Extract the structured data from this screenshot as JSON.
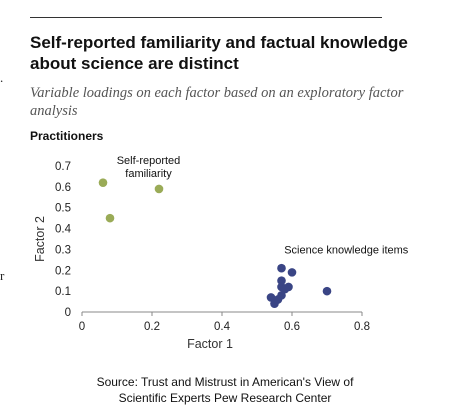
{
  "header": {
    "title": "Self-reported familiarity and factual knowledge about science are distinct",
    "subtitle": "Variable loadings on each factor based on an exploratory factor analysis",
    "panel_label": "Practitioners"
  },
  "left_edge_fragments": [
    ".",
    "r"
  ],
  "chart_data": {
    "type": "scatter",
    "title": "",
    "xlabel": "Factor 1",
    "ylabel": "Factor 2",
    "xlim": [
      0,
      0.8
    ],
    "ylim": [
      0,
      0.7
    ],
    "xticks": [
      "0",
      "0.2",
      "0.4",
      "0.6",
      "0.8"
    ],
    "yticks": [
      "0",
      "0.1",
      "0.2",
      "0.3",
      "0.4",
      "0.5",
      "0.6",
      "0.7"
    ],
    "grid": false,
    "series": [
      {
        "name": "Self-reported familiarity",
        "color": "#9aab57",
        "points": [
          [
            0.06,
            0.62
          ],
          [
            0.22,
            0.59
          ],
          [
            0.08,
            0.45
          ]
        ]
      },
      {
        "name": "Science knowledge items",
        "color": "#3a4585",
        "points": [
          [
            0.57,
            0.21
          ],
          [
            0.6,
            0.19
          ],
          [
            0.57,
            0.15
          ],
          [
            0.57,
            0.12
          ],
          [
            0.59,
            0.12
          ],
          [
            0.58,
            0.11
          ],
          [
            0.7,
            0.1
          ],
          [
            0.57,
            0.08
          ],
          [
            0.54,
            0.07
          ],
          [
            0.56,
            0.06
          ],
          [
            0.55,
            0.04
          ]
        ]
      }
    ]
  },
  "source": {
    "line1": "Source: Trust and Mistrust in American's View of",
    "line2": "Scientific Experts Pew Research Center"
  }
}
